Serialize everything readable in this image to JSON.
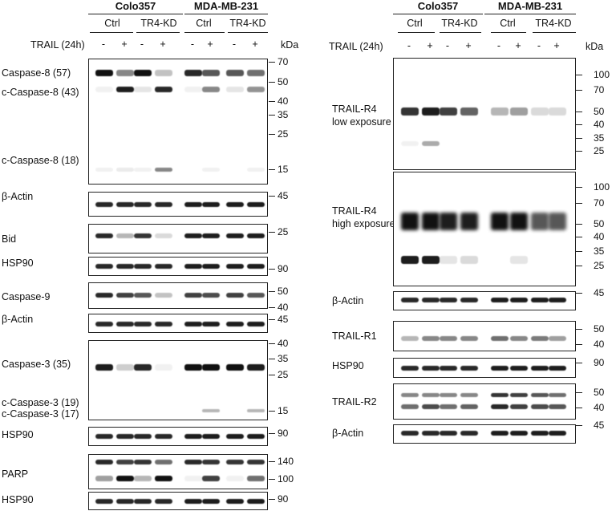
{
  "left": {
    "cell_lines": [
      "Colo357",
      "MDA-MB-231"
    ],
    "conditions": [
      "Ctrl",
      "TR4-KD",
      "Ctrl",
      "TR4-KD"
    ],
    "treatment_label": "TRAIL (24h)",
    "signs": [
      "-",
      "+",
      "-",
      "+",
      "-",
      "+",
      "-",
      "+"
    ],
    "kda_label": "kDa",
    "panels": [
      {
        "labels": [
          "Caspase-8 (57)",
          "c-Caspase-8 (43)",
          "c-Caspase-8 (18)"
        ],
        "markers": [
          "70",
          "50",
          "40",
          "35",
          "25",
          "15"
        ]
      },
      {
        "labels": [
          "β-Actin"
        ],
        "markers": [
          "45"
        ]
      },
      {
        "labels": [
          "Bid"
        ],
        "markers": [
          "25"
        ]
      },
      {
        "labels": [
          "HSP90"
        ],
        "markers": [
          "90"
        ]
      },
      {
        "labels": [
          "Caspase-9"
        ],
        "markers": [
          "50",
          "40"
        ]
      },
      {
        "labels": [
          "β-Actin"
        ],
        "markers": [
          "45"
        ]
      },
      {
        "labels": [
          "Caspase-3 (35)",
          "c-Caspase-3 (19)",
          "c-Caspase-3 (17)"
        ],
        "markers": [
          "40",
          "35",
          "25",
          "15"
        ]
      },
      {
        "labels": [
          "HSP90"
        ],
        "markers": [
          "90"
        ]
      },
      {
        "labels": [
          "PARP"
        ],
        "markers": [
          "140",
          "100"
        ]
      },
      {
        "labels": [
          "HSP90"
        ],
        "markers": [
          "90"
        ]
      }
    ]
  },
  "right": {
    "cell_lines": [
      "Colo357",
      "MDA-MB-231"
    ],
    "conditions": [
      "Ctrl",
      "TR4-KD",
      "Ctrl",
      "TR4-KD"
    ],
    "treatment_label": "TRAIL (24h)",
    "signs": [
      "-",
      "+",
      "-",
      "+",
      "-",
      "+",
      "-",
      "+"
    ],
    "kda_label": "kDa",
    "panels": [
      {
        "labels": [
          "TRAIL-R4",
          "low exposure"
        ],
        "markers": [
          "100",
          "70",
          "50",
          "40",
          "35",
          "25"
        ]
      },
      {
        "labels": [
          "TRAIL-R4",
          "high exposure"
        ],
        "markers": [
          "100",
          "70",
          "50",
          "40",
          "35",
          "25"
        ]
      },
      {
        "labels": [
          "β-Actin"
        ],
        "markers": [
          "45"
        ]
      },
      {
        "labels": [
          "TRAIL-R1"
        ],
        "markers": [
          "50",
          "40"
        ]
      },
      {
        "labels": [
          "HSP90"
        ],
        "markers": [
          "90"
        ]
      },
      {
        "labels": [
          "TRAIL-R2"
        ],
        "markers": [
          "50",
          "40"
        ]
      },
      {
        "labels": [
          "β-Actin"
        ],
        "markers": [
          "45"
        ]
      }
    ]
  }
}
